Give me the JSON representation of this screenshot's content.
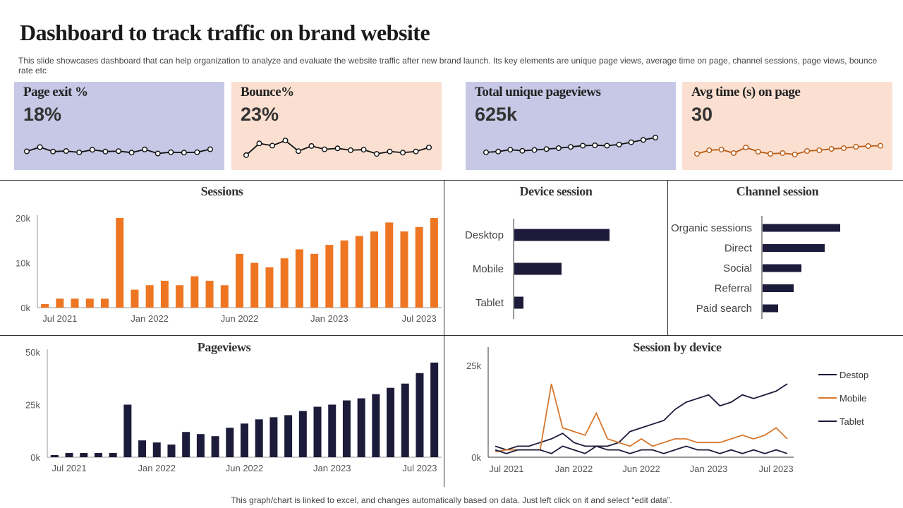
{
  "header": {
    "title": "Dashboard to track traffic on brand website",
    "subtitle": "This slide showcases dashboard that can help organization to analyze and evaluate the website traffic after new brand launch. Its key elements are unique page views, average time on page, channel sessions, page views, bounce rate etc"
  },
  "kpis": [
    {
      "label": "Page exit %",
      "value": "18%",
      "color": "#c6c8e6",
      "line_color": "#111111",
      "trend": [
        0.3,
        0.7,
        0.28,
        0.33,
        0.2,
        0.45,
        0.28,
        0.32,
        0.18,
        0.48,
        0.1,
        0.22,
        0.18,
        0.22,
        0.5
      ]
    },
    {
      "label": "Bounce%",
      "value": "23%",
      "color": "#fbe0d1",
      "line_color": "#111111",
      "trend": [
        0.08,
        0.72,
        0.6,
        0.88,
        0.3,
        0.58,
        0.4,
        0.45,
        0.35,
        0.38,
        0.15,
        0.28,
        0.22,
        0.28,
        0.5
      ]
    },
    {
      "label": "Total unique pageviews",
      "value": "625k",
      "color": "#c6c8e6",
      "line_color": "#111111",
      "trend": [
        0.05,
        0.1,
        0.22,
        0.15,
        0.2,
        0.26,
        0.32,
        0.4,
        0.48,
        0.5,
        0.48,
        0.55,
        0.7,
        0.85,
        1.0
      ]
    },
    {
      "label": "Avg time (s) on page",
      "value": "30",
      "color": "#fbe0d1",
      "line_color": "#b85a14",
      "trend": [
        0.15,
        0.4,
        0.45,
        0.2,
        0.6,
        0.3,
        0.15,
        0.2,
        0.1,
        0.35,
        0.4,
        0.5,
        0.55,
        0.65,
        0.7,
        0.72
      ]
    }
  ],
  "chart_data": [
    {
      "id": "sessions",
      "type": "bar",
      "title": "Sessions",
      "color": "#ee7623",
      "y_ticks": [
        "0k",
        "10k",
        "20k"
      ],
      "ylim": [
        0,
        20000
      ],
      "x_tick_labels": [
        "Jul 2021",
        "Jan 2022",
        "Jun 2022",
        "Jan 2023",
        "Jul 2023"
      ],
      "x_tick_index": [
        1,
        7,
        13,
        19,
        25
      ],
      "values": [
        800,
        2000,
        2000,
        2000,
        2000,
        20000,
        4000,
        5000,
        6000,
        5000,
        7000,
        6000,
        5000,
        12000,
        10000,
        9000,
        11000,
        13000,
        12000,
        14000,
        15000,
        16000,
        17000,
        19000,
        17000,
        18000,
        20000
      ]
    },
    {
      "id": "device_session",
      "type": "bar",
      "orientation": "horizontal",
      "title": "Device session",
      "color": "#1c1b3a",
      "categories": [
        "Desktop",
        "Mobile",
        "Tablet"
      ],
      "values": [
        135,
        67,
        13
      ]
    },
    {
      "id": "channel_session",
      "type": "bar",
      "orientation": "horizontal",
      "title": "Channel session",
      "color": "#1c1b3a",
      "categories": [
        "Organic sessions",
        "Direct",
        "Social",
        "Referral",
        "Paid search"
      ],
      "values": [
        110,
        88,
        55,
        44,
        22
      ]
    },
    {
      "id": "pageviews",
      "type": "bar",
      "title": "Pageviews",
      "color": "#1c1b3a",
      "y_ticks": [
        "0k",
        "25k",
        "50k"
      ],
      "ylim": [
        0,
        50000
      ],
      "x_tick_labels": [
        "Jul 2021",
        "Jan 2022",
        "Jun 2022",
        "Jan 2023",
        "Jul 2023"
      ],
      "x_tick_index": [
        1,
        7,
        13,
        19,
        25
      ],
      "values": [
        1000,
        2000,
        2000,
        2000,
        2000,
        25000,
        8000,
        7000,
        6000,
        12000,
        11000,
        10000,
        14000,
        16000,
        18000,
        19000,
        20000,
        22000,
        24000,
        25000,
        27000,
        28000,
        30000,
        33000,
        35000,
        40000,
        45000
      ]
    },
    {
      "id": "session_by_device",
      "type": "line",
      "title": "Session by device",
      "y_ticks": [
        "0k",
        "25k"
      ],
      "ylim": [
        0,
        25000
      ],
      "x_tick_labels": [
        "Jul 2021",
        "Jan 2022",
        "Jun 2022",
        "Jan 2023",
        "Jul 2023"
      ],
      "x_tick_index": [
        1,
        7,
        13,
        19,
        25
      ],
      "series": [
        {
          "name": "Destop",
          "color": "#1c1b3a",
          "values": [
            3000,
            2000,
            3000,
            3000,
            4000,
            5000,
            6500,
            4000,
            3000,
            3000,
            3000,
            4000,
            7000,
            8000,
            9000,
            10000,
            13000,
            15000,
            16000,
            17000,
            14000,
            15000,
            17000,
            16000,
            17000,
            18000,
            20000
          ]
        },
        {
          "name": "Mobile",
          "color": "#d8782e",
          "values": [
            1500,
            2000,
            2000,
            2000,
            2000,
            20000,
            8000,
            7000,
            6000,
            12000,
            5000,
            4000,
            3000,
            5000,
            3000,
            4000,
            5000,
            5000,
            4000,
            4000,
            4000,
            5000,
            6000,
            5000,
            6000,
            8000,
            5000
          ]
        },
        {
          "name": "Tablet",
          "color": "#1c1b3a",
          "values": [
            2000,
            1000,
            2000,
            2000,
            2000,
            1000,
            3000,
            2000,
            1000,
            3000,
            2000,
            2000,
            1000,
            2000,
            2000,
            1000,
            2000,
            3000,
            2000,
            2000,
            1000,
            2000,
            1000,
            2000,
            1000,
            2000,
            1000
          ]
        }
      ]
    }
  ],
  "footer": "This graph/chart is linked to excel, and changes automatically based on data. Just left click on it and select “edit data”."
}
